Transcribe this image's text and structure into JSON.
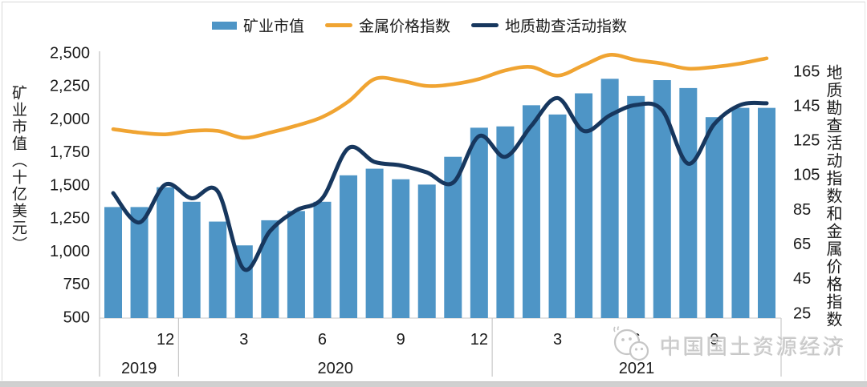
{
  "legend": {
    "items": [
      {
        "label": "矿业市值",
        "type": "bar",
        "color": "#4E95C6"
      },
      {
        "label": "金属价格指数",
        "type": "line",
        "color": "#F0A432"
      },
      {
        "label": "地质勘查活动指数",
        "type": "line",
        "color": "#17375E"
      }
    ]
  },
  "left_axis": {
    "title": "矿业市值（十亿美元）",
    "tick_labels": [
      "2,500",
      "2,250",
      "2,000",
      "1,750",
      "1,500",
      "1,250",
      "1,000",
      "750",
      "500"
    ],
    "tick_values": [
      2500,
      2250,
      2000,
      1750,
      1500,
      1250,
      1000,
      750,
      500
    ]
  },
  "right_axis": {
    "title": "地质勘查活动指数和金属价格指数",
    "tick_labels": [
      "165",
      "145",
      "125",
      "105",
      "85",
      "65",
      "45",
      "25"
    ],
    "tick_values": [
      165,
      145,
      125,
      105,
      85,
      65,
      45,
      25
    ]
  },
  "x_axis": {
    "month_ticks": [
      {
        "index": 2,
        "label": "12"
      },
      {
        "index": 5,
        "label": "3"
      },
      {
        "index": 8,
        "label": "6"
      },
      {
        "index": 11,
        "label": "9"
      },
      {
        "index": 14,
        "label": "12"
      },
      {
        "index": 17,
        "label": "3"
      },
      {
        "index": 20,
        "label": "6"
      },
      {
        "index": 23,
        "label": "9"
      }
    ],
    "year_sections": [
      {
        "label": "2019",
        "start": 0,
        "end": 2
      },
      {
        "label": "2020",
        "start": 3,
        "end": 14
      },
      {
        "label": "2021",
        "start": 15,
        "end": 25
      }
    ]
  },
  "watermark": {
    "text": "中国国土资源经济",
    "icon": "wechat-logo"
  },
  "colors": {
    "bar": "#4E95C6",
    "metal_line": "#F0A432",
    "exploration_line": "#17375E",
    "axis_line": "#c9c9c9",
    "axis_text": "#1a1a1a",
    "watermark": "#c8c8c8",
    "bottom_strip": "#d0d0d0"
  },
  "chart_data": {
    "type": "bar+line combo",
    "x": [
      "2019-10",
      "2019-11",
      "2019-12",
      "2020-01",
      "2020-02",
      "2020-03",
      "2020-04",
      "2020-05",
      "2020-06",
      "2020-07",
      "2020-08",
      "2020-09",
      "2020-10",
      "2020-11",
      "2020-12",
      "2021-01",
      "2021-02",
      "2021-03",
      "2021-04",
      "2021-05",
      "2021-06",
      "2021-07",
      "2021-08",
      "2021-09",
      "2021-10",
      "2021-11"
    ],
    "series": [
      {
        "name": "矿业市值",
        "type": "bar",
        "axis": "left",
        "unit": "十亿美元",
        "values": [
          1340,
          1340,
          1490,
          1380,
          1230,
          1050,
          1240,
          1310,
          1380,
          1580,
          1630,
          1550,
          1510,
          1720,
          1940,
          1950,
          2110,
          2040,
          2200,
          2310,
          2180,
          2300,
          2240,
          2020,
          2090,
          2090
        ]
      },
      {
        "name": "金属价格指数",
        "type": "line",
        "axis": "right",
        "values": [
          132,
          130,
          129,
          131,
          131,
          127,
          130,
          134,
          139,
          148,
          161,
          160,
          157,
          158,
          161,
          166,
          168,
          163,
          169,
          175,
          172,
          170,
          167,
          168,
          170,
          173
        ]
      },
      {
        "name": "地质勘查活动指数",
        "type": "line",
        "axis": "right",
        "values": [
          95,
          78,
          100,
          92,
          96,
          51,
          73,
          85,
          92,
          121,
          113,
          111,
          107,
          101,
          128,
          116,
          134,
          150,
          131,
          140,
          146,
          143,
          112,
          135,
          146,
          147
        ]
      }
    ],
    "left_ylim": [
      500,
      2500
    ],
    "right_ylim": [
      25,
      165
    ],
    "grid": false,
    "legend_position": "top"
  }
}
